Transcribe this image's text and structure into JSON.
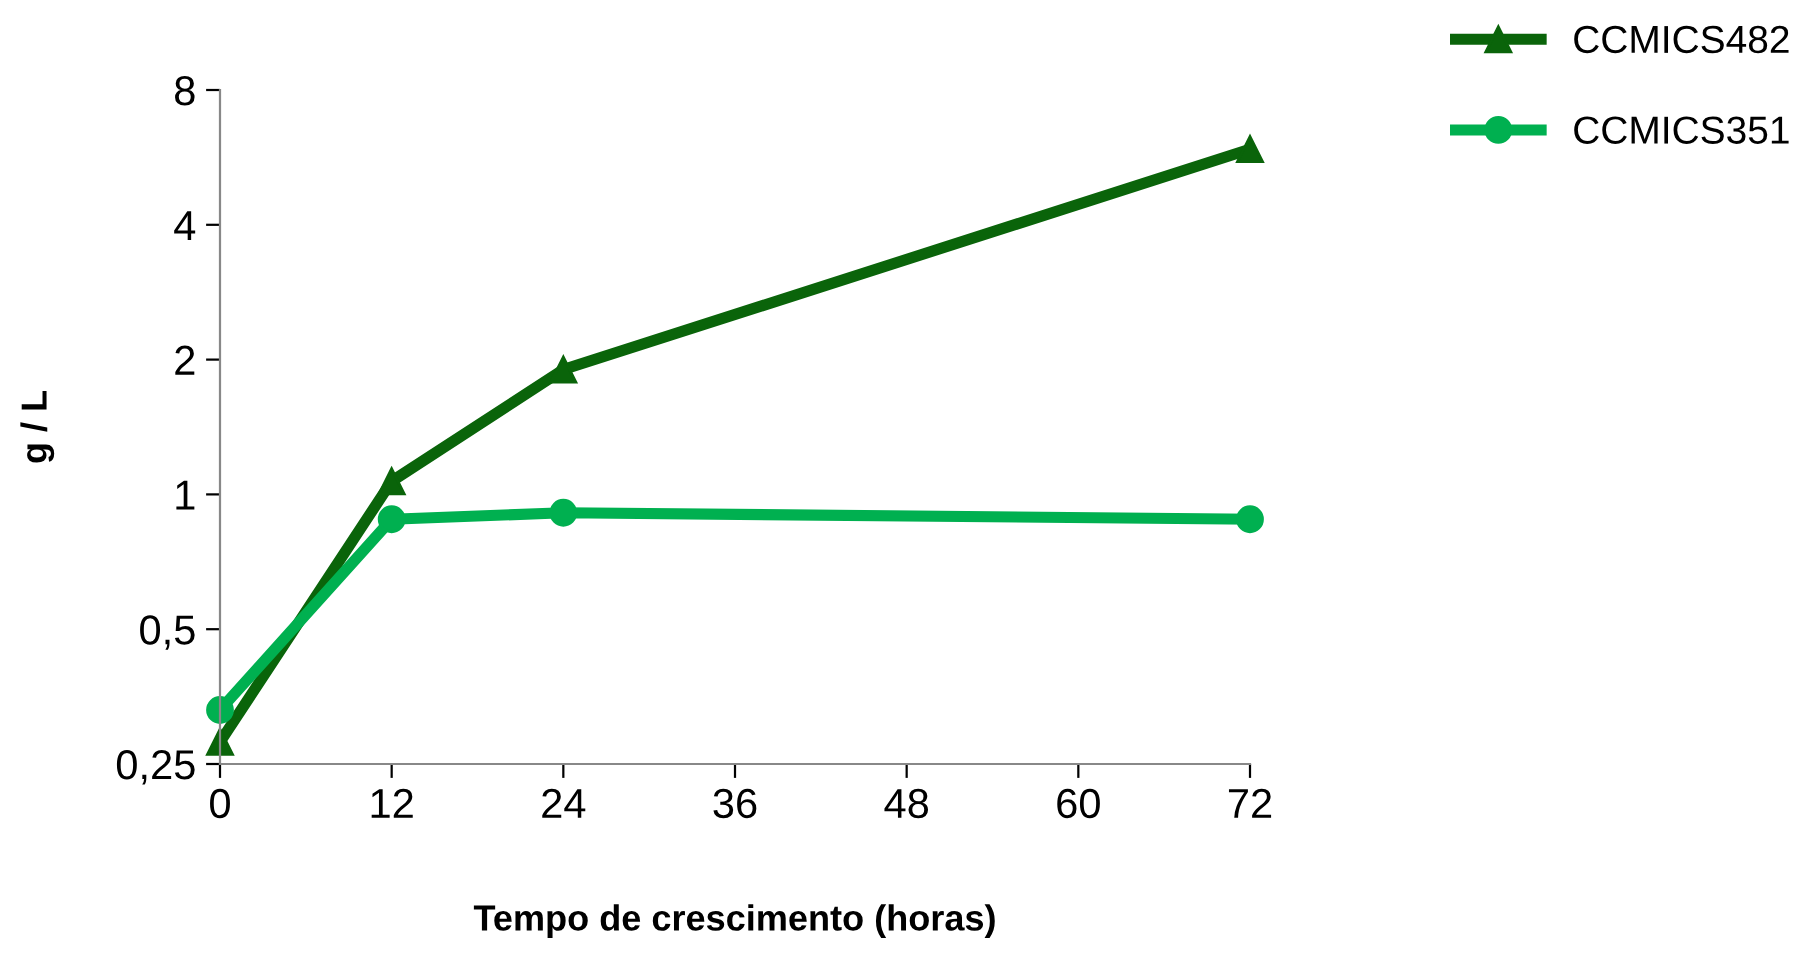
{
  "chart_data": {
    "type": "line",
    "xlabel": "Tempo de crescimento (horas)",
    "ylabel": "g / L",
    "x": [
      0,
      12,
      24,
      72
    ],
    "series": [
      {
        "name": "CCMICS482",
        "color": "#0a640a",
        "marker": "triangle",
        "values": [
          0.28,
          1.07,
          1.9,
          5.9
        ]
      },
      {
        "name": "CCMICS351",
        "color": "#00b050",
        "marker": "circle",
        "values": [
          0.33,
          0.88,
          0.91,
          0.88
        ]
      }
    ],
    "log": "y",
    "xlim": [
      0,
      72
    ],
    "xticks": [
      0,
      12,
      24,
      36,
      48,
      60,
      72
    ],
    "ylim": [
      0.25,
      8
    ],
    "yticks": [
      {
        "value": 0.25,
        "label": "0,25"
      },
      {
        "value": 0.5,
        "label": "0,5"
      },
      1,
      2,
      4,
      8
    ],
    "grid": false,
    "legend": "top right",
    "line_style": "solid"
  }
}
